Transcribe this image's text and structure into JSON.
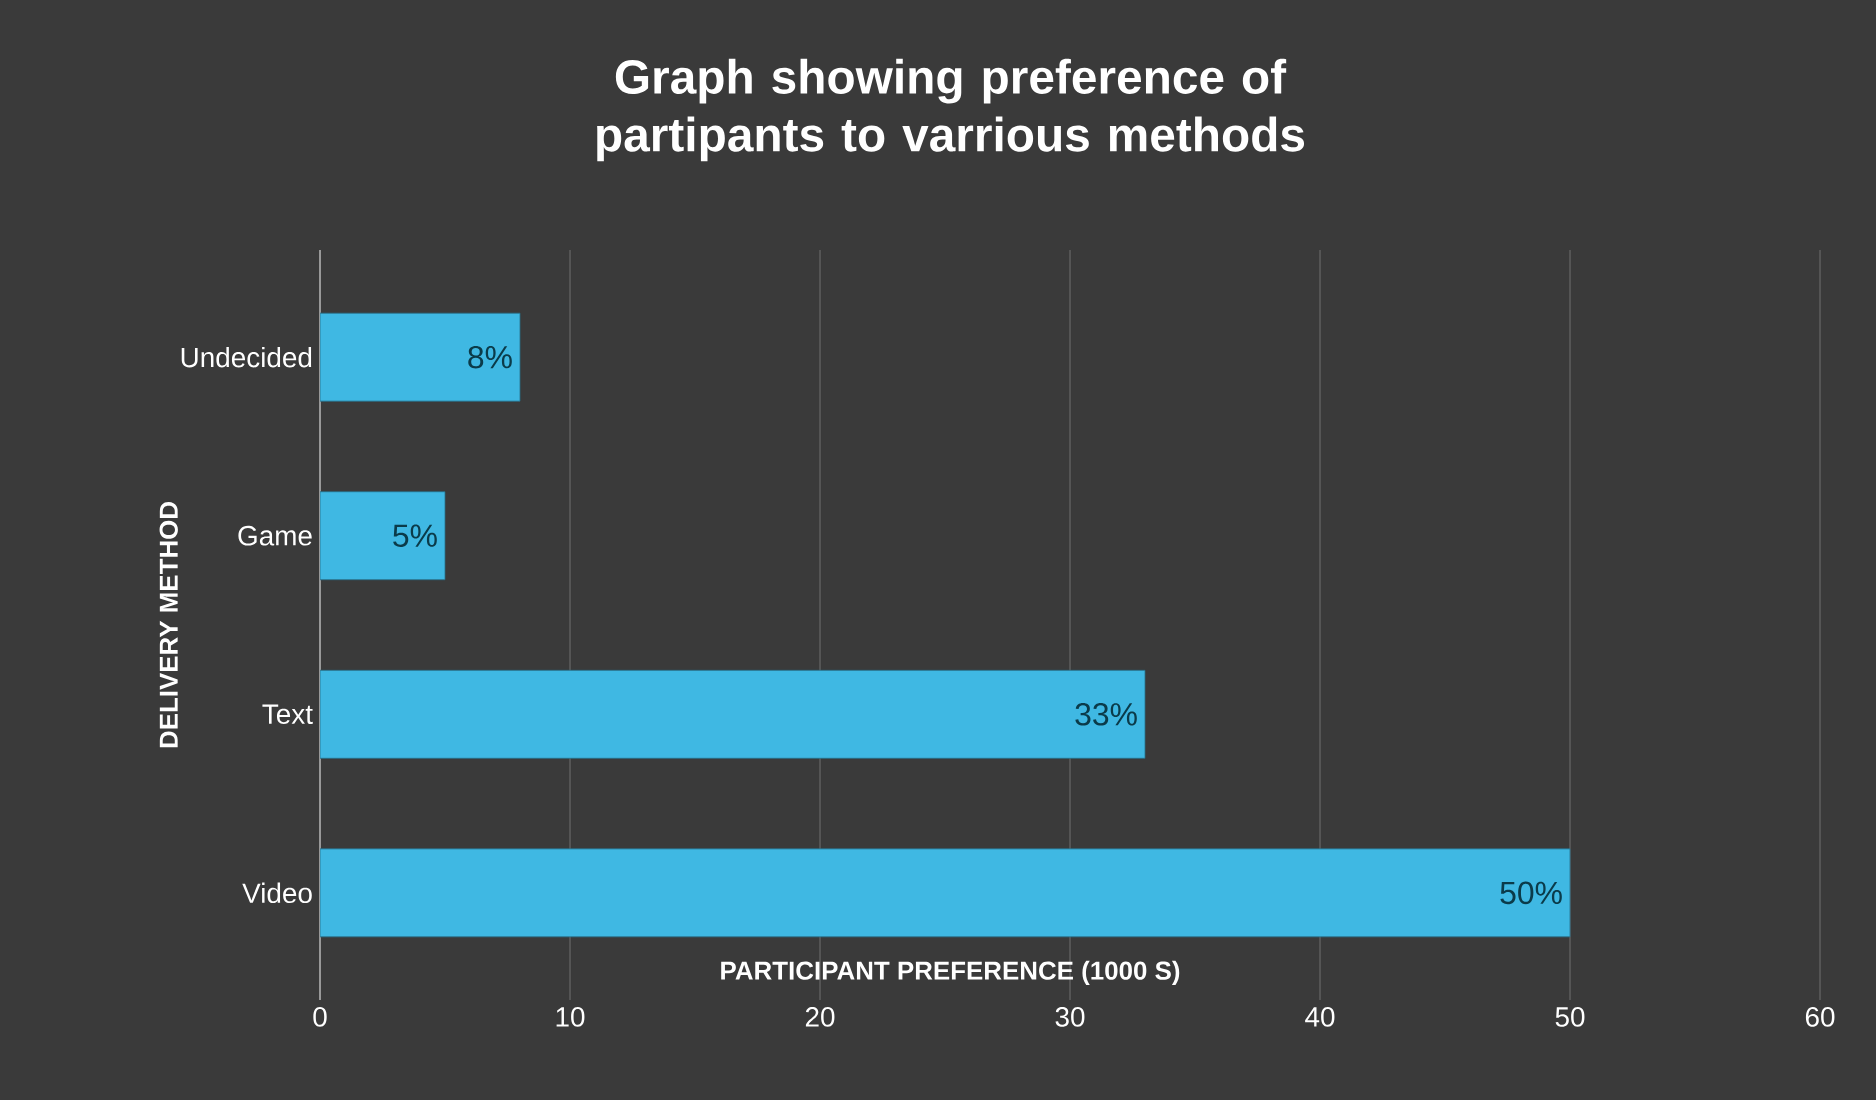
{
  "chart_data": {
    "type": "bar",
    "orientation": "horizontal",
    "title": "Graph showing preference of partipants to varrious methods",
    "xlabel": "PARTICIPANT PREFERENCE (1000 S)",
    "ylabel": "DELIVERY METHOD",
    "categories": [
      "Undecided",
      "Game",
      "Text",
      "Video"
    ],
    "values": [
      8,
      5,
      33,
      50
    ],
    "value_labels": [
      "8%",
      "5%",
      "33%",
      "50%"
    ],
    "color": "#3fb8e3",
    "xlim": [
      0,
      60
    ],
    "xticks": [
      0,
      10,
      20,
      30,
      40,
      50,
      60
    ],
    "grid": "x"
  }
}
